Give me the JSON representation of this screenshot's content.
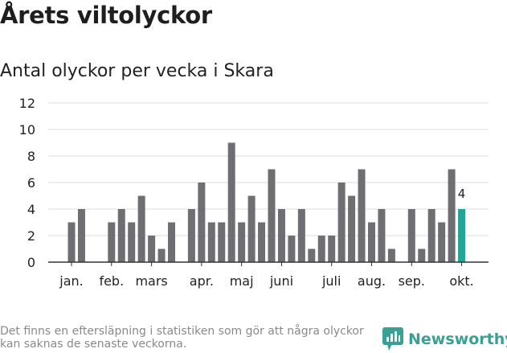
{
  "header": {
    "title": "Årets viltolyckor",
    "subtitle": "Antal olyckor per vecka i Skara"
  },
  "footnote": "Det finns en eftersläpning i statistiken som gör att några olyckor kan saknas de senaste veckorna.",
  "brand": {
    "name": "Newsworthy"
  },
  "chart_data": {
    "type": "bar",
    "title": "Antal olyckor per vecka i Skara",
    "xlabel": "",
    "ylabel": "",
    "ylim": [
      0,
      12
    ],
    "yticks": [
      0,
      2,
      4,
      6,
      8,
      10,
      12
    ],
    "weeks": [
      1,
      2,
      3,
      4,
      5,
      6,
      7,
      8,
      9,
      10,
      11,
      12,
      13,
      14,
      15,
      16,
      17,
      18,
      19,
      20,
      21,
      22,
      23,
      24,
      25,
      26,
      27,
      28,
      29,
      30,
      31,
      32,
      33,
      34,
      35,
      36,
      37,
      38,
      39,
      40,
      41
    ],
    "values": [
      3,
      4,
      0,
      0,
      3,
      4,
      3,
      5,
      2,
      1,
      3,
      0,
      4,
      6,
      3,
      3,
      9,
      3,
      5,
      3,
      7,
      4,
      2,
      4,
      1,
      2,
      2,
      6,
      5,
      7,
      3,
      4,
      1,
      0,
      4,
      1,
      4,
      3,
      7,
      4,
      0
    ],
    "month_labels": [
      {
        "label": "jan.",
        "week": 1
      },
      {
        "label": "feb.",
        "week": 5
      },
      {
        "label": "mars",
        "week": 9
      },
      {
        "label": "apr.",
        "week": 14
      },
      {
        "label": "maj",
        "week": 18
      },
      {
        "label": "juni",
        "week": 22
      },
      {
        "label": "juli",
        "week": 27
      },
      {
        "label": "aug.",
        "week": 31
      },
      {
        "label": "sep.",
        "week": 35
      },
      {
        "label": "okt.",
        "week": 40
      }
    ],
    "highlight_week": 40,
    "highlight_label": "4",
    "colors": {
      "bar": "#6f6e73",
      "highlight": "#23a495",
      "grid": "#dddddd",
      "axis": "#333333"
    }
  }
}
